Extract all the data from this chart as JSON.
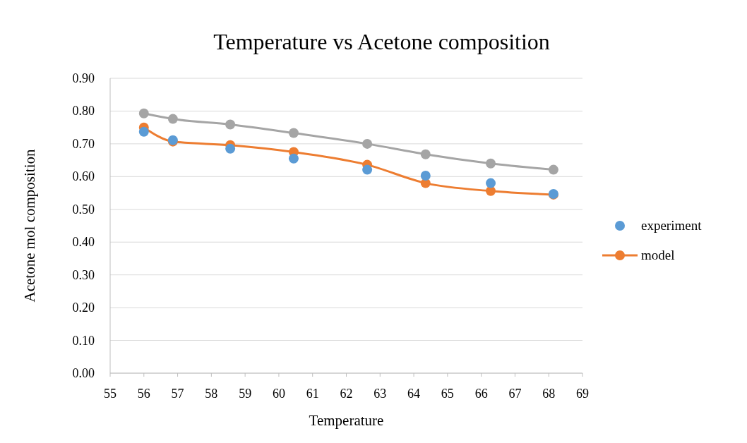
{
  "chart_data": {
    "type": "line",
    "title": "Temperature vs Acetone composition",
    "xlabel": "Temperature",
    "ylabel": "Acetone mol composition",
    "x": [
      56.0,
      56.86,
      58.56,
      60.44,
      62.62,
      64.35,
      66.28,
      68.14
    ],
    "series": [
      {
        "name": "experiment",
        "type": "scatter",
        "color": "#5b9bd5",
        "values": [
          0.737,
          0.711,
          0.685,
          0.655,
          0.621,
          0.603,
          0.58,
          0.547
        ]
      },
      {
        "name": "model",
        "color": "#ed7d31",
        "values": [
          0.75,
          0.707,
          0.696,
          0.675,
          0.636,
          0.58,
          0.556,
          0.545
        ]
      },
      {
        "color": "#a5a5a5",
        "values": [
          0.793,
          0.776,
          0.759,
          0.733,
          0.7,
          0.668,
          0.64,
          0.621
        ]
      }
    ],
    "xlim": [
      55,
      69
    ],
    "xticks": [
      55,
      56,
      57,
      58,
      59,
      60,
      61,
      62,
      63,
      64,
      65,
      66,
      67,
      68,
      69
    ],
    "ylim": [
      0,
      0.9
    ],
    "yticks": [
      {
        "value": 0,
        "label": "0.00"
      },
      {
        "value": 0.1,
        "label": "0.10"
      },
      {
        "value": 0.2,
        "label": "0.20"
      },
      {
        "value": 0.3,
        "label": "0.30"
      },
      {
        "value": 0.4,
        "label": "0.40"
      },
      {
        "value": 0.5,
        "label": "0.50"
      },
      {
        "value": 0.6,
        "label": "0.60"
      },
      {
        "value": 0.7,
        "label": "0.70"
      },
      {
        "value": 0.8,
        "label": "0.80"
      },
      {
        "value": 0.9,
        "label": "0.90"
      }
    ],
    "grid": "y",
    "legend": "right",
    "marker": "circle"
  }
}
